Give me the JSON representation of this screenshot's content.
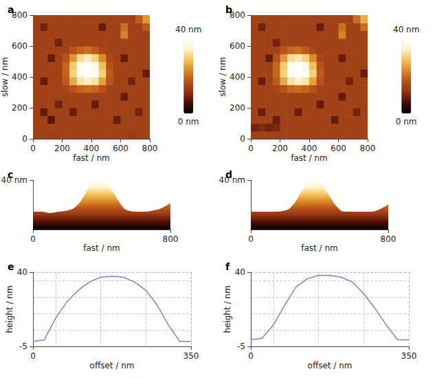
{
  "chart_data": [
    {
      "type": "heatmap",
      "title": "a",
      "x_label": "fast / nm",
      "y_label": "slow / nm",
      "xlim": [
        0,
        800
      ],
      "ylim": [
        0,
        800
      ],
      "xticks": [
        0,
        200,
        400,
        600,
        800
      ],
      "yticks": [
        0,
        200,
        400,
        600,
        800
      ],
      "z": [
        [
          14,
          14,
          13,
          14,
          14,
          14,
          14,
          14,
          14,
          14,
          14,
          14,
          14,
          13,
          14,
          14
        ],
        [
          14,
          14,
          14,
          14,
          14,
          14,
          14,
          14,
          14,
          14,
          14,
          14,
          14,
          14,
          14,
          14
        ],
        [
          14,
          14,
          7,
          14,
          14,
          14,
          14,
          14,
          14,
          14,
          14,
          8,
          14,
          14,
          14,
          14
        ],
        [
          14,
          8,
          14,
          14,
          14,
          8,
          14,
          14,
          14,
          14,
          14,
          14,
          14,
          14,
          9,
          14
        ],
        [
          14,
          14,
          14,
          9,
          14,
          14,
          14,
          14,
          8,
          14,
          14,
          14,
          14,
          14,
          14,
          14
        ],
        [
          14,
          14,
          14,
          14,
          14,
          14,
          14,
          14,
          14,
          14,
          14,
          14,
          8,
          14,
          14,
          14
        ],
        [
          14,
          14,
          14,
          14,
          15,
          17,
          19,
          20,
          19,
          17,
          14,
          14,
          14,
          14,
          14,
          14
        ],
        [
          14,
          8,
          14,
          14,
          18,
          26,
          32,
          34,
          32,
          25,
          17,
          14,
          14,
          9,
          14,
          14
        ],
        [
          14,
          14,
          14,
          14,
          19,
          30,
          38,
          40,
          38,
          30,
          18,
          14,
          14,
          14,
          14,
          8
        ],
        [
          14,
          14,
          14,
          14,
          19,
          29,
          38,
          40,
          37,
          28,
          17,
          14,
          14,
          14,
          14,
          14
        ],
        [
          14,
          14,
          8,
          14,
          17,
          24,
          31,
          33,
          30,
          23,
          15,
          14,
          8,
          14,
          14,
          14
        ],
        [
          14,
          14,
          14,
          14,
          14,
          17,
          19,
          20,
          18,
          15,
          14,
          14,
          14,
          14,
          14,
          14
        ],
        [
          14,
          14,
          14,
          9,
          14,
          14,
          14,
          14,
          14,
          14,
          14,
          14,
          14,
          14,
          14,
          14
        ],
        [
          14,
          14,
          14,
          14,
          14,
          14,
          14,
          14,
          14,
          14,
          14,
          14,
          22,
          14,
          14,
          14
        ],
        [
          14,
          9,
          14,
          14,
          14,
          14,
          14,
          14,
          14,
          8,
          14,
          14,
          20,
          14,
          14,
          18
        ],
        [
          14,
          14,
          14,
          14,
          14,
          14,
          14,
          14,
          14,
          14,
          14,
          14,
          14,
          14,
          18,
          24
        ]
      ],
      "colorbar": {
        "range": [
          0,
          40
        ],
        "ticks": [
          {
            "value": 40,
            "label": "40 nm"
          },
          {
            "value": 0,
            "label": "0 nm"
          }
        ]
      }
    },
    {
      "type": "heatmap",
      "title": "b",
      "x_label": "fast / nm",
      "y_label": "slow / nm",
      "xlim": [
        0,
        800
      ],
      "ylim": [
        0,
        800
      ],
      "xticks": [
        0,
        200,
        400,
        600,
        800
      ],
      "yticks": [
        0,
        200,
        400,
        600,
        800
      ],
      "z": [
        [
          14,
          14,
          14,
          14,
          14,
          14,
          14,
          14,
          14,
          14,
          14,
          14,
          14,
          14,
          14,
          14
        ],
        [
          9,
          10,
          9,
          10,
          14,
          14,
          14,
          14,
          14,
          14,
          14,
          14,
          14,
          14,
          14,
          14
        ],
        [
          14,
          14,
          14,
          8,
          14,
          14,
          14,
          14,
          14,
          14,
          14,
          8,
          14,
          14,
          14,
          14
        ],
        [
          14,
          8,
          14,
          14,
          14,
          14,
          8,
          14,
          14,
          14,
          14,
          14,
          14,
          14,
          9,
          14
        ],
        [
          14,
          14,
          14,
          14,
          14,
          14,
          14,
          14,
          14,
          8,
          14,
          14,
          14,
          14,
          14,
          14
        ],
        [
          14,
          14,
          14,
          14,
          14,
          14,
          14,
          14,
          14,
          14,
          14,
          14,
          8,
          14,
          14,
          14
        ],
        [
          14,
          14,
          14,
          15,
          17,
          19,
          20,
          19,
          17,
          14,
          14,
          14,
          14,
          14,
          14,
          14
        ],
        [
          14,
          8,
          14,
          18,
          26,
          32,
          34,
          32,
          25,
          17,
          14,
          14,
          14,
          9,
          14,
          14
        ],
        [
          14,
          14,
          14,
          19,
          30,
          38,
          40,
          38,
          30,
          18,
          14,
          14,
          14,
          14,
          14,
          8
        ],
        [
          14,
          14,
          14,
          19,
          29,
          38,
          40,
          37,
          28,
          17,
          14,
          14,
          14,
          14,
          14,
          14
        ],
        [
          14,
          14,
          8,
          17,
          24,
          31,
          33,
          30,
          23,
          15,
          14,
          14,
          8,
          14,
          14,
          14
        ],
        [
          14,
          14,
          14,
          14,
          17,
          19,
          20,
          18,
          15,
          14,
          14,
          14,
          14,
          14,
          14,
          14
        ],
        [
          14,
          14,
          14,
          9,
          14,
          14,
          14,
          14,
          14,
          14,
          14,
          14,
          14,
          14,
          14,
          14
        ],
        [
          14,
          14,
          14,
          14,
          14,
          14,
          14,
          14,
          14,
          14,
          14,
          14,
          22,
          14,
          14,
          14
        ],
        [
          14,
          9,
          14,
          14,
          14,
          14,
          14,
          14,
          14,
          8,
          14,
          14,
          20,
          14,
          14,
          20
        ],
        [
          14,
          14,
          14,
          14,
          14,
          14,
          14,
          14,
          14,
          14,
          14,
          14,
          14,
          14,
          20,
          26
        ]
      ],
      "colorbar": {
        "range": [
          0,
          40
        ],
        "ticks": [
          {
            "value": 40,
            "label": "40 nm"
          },
          {
            "value": 0,
            "label": "0 nm"
          }
        ]
      }
    },
    {
      "type": "surface",
      "title": "c",
      "x_label": "fast / nm",
      "xlim": [
        0,
        800
      ],
      "xticks": [
        0,
        800
      ],
      "ylim": [
        0,
        40
      ],
      "yticks": [
        {
          "value": 40,
          "label": "40 nm"
        }
      ],
      "x": [
        0,
        50,
        100,
        150,
        200,
        250,
        300,
        350,
        400,
        450,
        500,
        550,
        600,
        650,
        700,
        750,
        800
      ],
      "values": [
        14,
        14,
        13,
        14,
        15,
        18,
        27,
        38,
        39,
        33,
        22,
        15,
        14,
        14,
        15,
        17,
        21
      ]
    },
    {
      "type": "surface",
      "title": "d",
      "x_label": "fast / nm",
      "xlim": [
        0,
        800
      ],
      "xticks": [
        0,
        800
      ],
      "ylim": [
        0,
        40
      ],
      "yticks": [
        {
          "value": 40,
          "label": "40 nm"
        }
      ],
      "x": [
        0,
        50,
        100,
        150,
        200,
        250,
        300,
        350,
        400,
        450,
        500,
        550,
        600,
        650,
        700,
        750,
        800
      ],
      "values": [
        14,
        14,
        14,
        14,
        15,
        20,
        31,
        39,
        37,
        28,
        18,
        14,
        14,
        14,
        14,
        16,
        20
      ]
    },
    {
      "type": "line",
      "title": "e",
      "x_label": "offset / nm",
      "y_label": "height / nm",
      "xlim": [
        0,
        350
      ],
      "xticks": [
        0,
        350
      ],
      "ylim": [
        -5,
        40
      ],
      "yticks": [
        -5,
        40
      ],
      "grid": true,
      "color": "#8080d0",
      "x": [
        0,
        25,
        50,
        75,
        100,
        125,
        150,
        175,
        200,
        225,
        250,
        275,
        300,
        325,
        350
      ],
      "values": [
        -2,
        -1,
        12,
        22,
        29,
        34,
        37,
        37.5,
        37,
        34,
        29,
        20,
        8,
        -2,
        -2
      ]
    },
    {
      "type": "line",
      "title": "f",
      "x_label": "offset / nm",
      "y_label": "height / nm",
      "xlim": [
        0,
        350
      ],
      "xticks": [
        0,
        350
      ],
      "ylim": [
        -5,
        40
      ],
      "yticks": [
        -5,
        40
      ],
      "grid": true,
      "color": "#8080d0",
      "x": [
        0,
        25,
        50,
        75,
        100,
        125,
        150,
        175,
        200,
        225,
        250,
        275,
        300,
        325,
        350
      ],
      "values": [
        -1,
        0,
        8,
        20,
        31,
        36,
        38,
        38,
        37,
        34,
        27,
        18,
        8,
        -1,
        -1
      ]
    }
  ]
}
